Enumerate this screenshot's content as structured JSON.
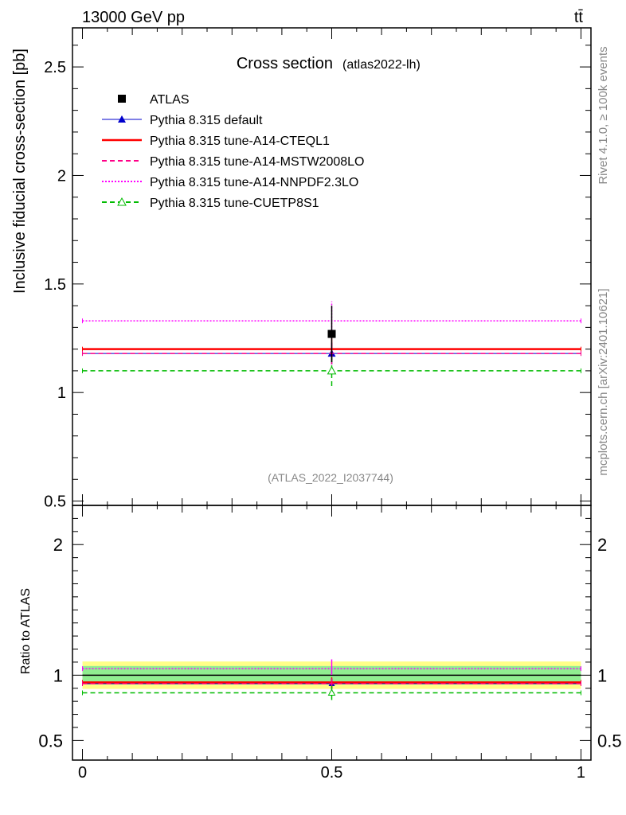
{
  "header": {
    "energy": "13000 GeV pp",
    "process": "tt̄"
  },
  "side_labels": {
    "rivet": "Rivet 4.1.0, ≥ 100k events",
    "source": "mcplots.cern.ch [arXiv:2401.10621]"
  },
  "chart_data": [
    {
      "type": "scatter",
      "panel": "main",
      "title": "Cross section",
      "subtitle": "(atlas2022-lh)",
      "watermark": "(ATLAS_2022_I2037744)",
      "xlabel": "",
      "ylabel": "Inclusive fiducial cross-section [pb]",
      "xlim": [
        -0.02,
        1.02
      ],
      "ylim": [
        0.48,
        2.68
      ],
      "xticks": [
        0,
        0.5,
        1
      ],
      "xtick_labels": [
        "0",
        "0.5",
        "1"
      ],
      "yticks": [
        0.5,
        1,
        1.5,
        2,
        2.5
      ],
      "ytick_labels": [
        "0.5",
        "1",
        "1.5",
        "2",
        "2.5"
      ],
      "legend_position": "top-left",
      "series": [
        {
          "name": "ATLAS",
          "kind": "data",
          "color": "#000000",
          "marker": "square",
          "x": [
            0.5
          ],
          "y": [
            1.27
          ],
          "yerr_low": [
            0.13
          ],
          "yerr_high": [
            0.13
          ]
        },
        {
          "name": "Pythia 8.315 default",
          "kind": "mc",
          "color": "#0000cc",
          "line": "solid",
          "marker": "triangle",
          "x": [
            0,
            1
          ],
          "y": [
            1.18,
            1.18
          ],
          "xpoint": 0.5,
          "ypoint": 1.18,
          "yerr_low": 0.05,
          "yerr_high": 0.05
        },
        {
          "name": "Pythia 8.315 tune-A14-CTEQL1",
          "kind": "mc",
          "color": "#ff0000",
          "line": "solid-thick",
          "marker": "none",
          "x": [
            0,
            1
          ],
          "y": [
            1.2,
            1.2
          ],
          "xpoint": 0.5,
          "ypoint": 1.2,
          "yerr_low": 0.05,
          "yerr_high": 0.05
        },
        {
          "name": "Pythia 8.315 tune-A14-MSTW2008LO",
          "kind": "mc",
          "color": "#ff0088",
          "line": "dashed",
          "marker": "none",
          "x": [
            0,
            1
          ],
          "y": [
            1.18,
            1.18
          ],
          "xpoint": 0.5,
          "ypoint": 1.18,
          "yerr_low": 0.05,
          "yerr_high": 0.05
        },
        {
          "name": "Pythia 8.315 tune-A14-NNPDF2.3LO",
          "kind": "mc",
          "color": "#ff00ff",
          "line": "dotted",
          "marker": "none",
          "x": [
            0,
            1
          ],
          "y": [
            1.33,
            1.33
          ],
          "xpoint": 0.5,
          "ypoint": 1.33,
          "yerr_low": 0.06,
          "yerr_high": 0.09
        },
        {
          "name": "Pythia 8.315 tune-CUETP8S1",
          "kind": "mc",
          "color": "#00bb00",
          "line": "dashed",
          "marker": "open-triangle",
          "x": [
            0,
            1
          ],
          "y": [
            1.1,
            1.1
          ],
          "xpoint": 0.5,
          "ypoint": 1.1,
          "yerr_low": 0.07,
          "yerr_high": 0.07
        }
      ]
    },
    {
      "type": "line",
      "panel": "ratio",
      "ylabel": "Ratio to ATLAS",
      "xlim": [
        -0.02,
        1.02
      ],
      "ylim": [
        0.35,
        2.3
      ],
      "xticks": [
        0,
        0.5,
        1
      ],
      "xtick_labels": [
        "0",
        "0.5",
        "1"
      ],
      "yticks": [
        0.5,
        1,
        2
      ],
      "ytick_labels": [
        "0.5",
        "1",
        "2"
      ],
      "bands": [
        {
          "name": "total-uncertainty",
          "color": "#ffff88",
          "low": 0.895,
          "high": 1.105
        },
        {
          "name": "stat-uncertainty",
          "color": "#90ee90",
          "low": 0.93,
          "high": 1.07
        }
      ],
      "series": [
        {
          "name": "ATLAS",
          "color": "#000000",
          "x": [
            0,
            1
          ],
          "y": [
            1.0,
            1.0
          ]
        },
        {
          "name": "Pythia 8.315 default",
          "color": "#0000cc",
          "x": [
            0,
            1
          ],
          "y": [
            0.935,
            0.935
          ]
        },
        {
          "name": "Pythia 8.315 tune-A14-CTEQL1",
          "color": "#ff0000",
          "x": [
            0,
            1
          ],
          "y": [
            0.945,
            0.945
          ]
        },
        {
          "name": "Pythia 8.315 tune-A14-MSTW2008LO",
          "color": "#ff0088",
          "x": [
            0,
            1
          ],
          "y": [
            0.935,
            0.935
          ]
        },
        {
          "name": "Pythia 8.315 tune-A14-NNPDF2.3LO",
          "color": "#ff00ff",
          "x": [
            0,
            1
          ],
          "y": [
            1.05,
            1.05
          ]
        },
        {
          "name": "Pythia 8.315 tune-CUETP8S1",
          "color": "#00bb00",
          "x": [
            0,
            1
          ],
          "y": [
            0.865,
            0.865
          ]
        }
      ]
    }
  ]
}
